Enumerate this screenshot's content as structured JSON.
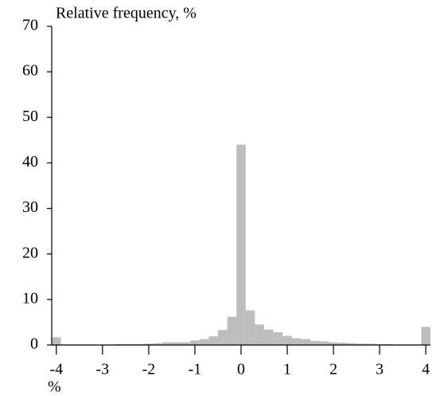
{
  "chart_data": {
    "type": "histogram",
    "y_axis_label": "Relative frequency, %",
    "x_axis_label": "%",
    "bins": [
      -4.1,
      -3.9,
      -3.7,
      -3.5,
      -3.3,
      -3.1,
      -2.9,
      -2.7,
      -2.5,
      -2.3,
      -2.1,
      -1.9,
      -1.7,
      -1.5,
      -1.3,
      -1.1,
      -0.9,
      -0.7,
      -0.5,
      -0.3,
      -0.1,
      0.1,
      0.3,
      0.5,
      0.7,
      0.9,
      1.1,
      1.3,
      1.5,
      1.7,
      1.9,
      2.1,
      2.3,
      2.5,
      2.7,
      2.9,
      3.1,
      3.3,
      3.5,
      3.7,
      3.9,
      4.1
    ],
    "values": [
      1.7,
      0.1,
      0.1,
      0.1,
      0.1,
      0.1,
      0.1,
      0.2,
      0.2,
      0.2,
      0.3,
      0.4,
      0.6,
      0.6,
      0.6,
      1.0,
      1.3,
      1.9,
      3.3,
      6.2,
      44,
      7.6,
      4.5,
      3.4,
      2.8,
      2.0,
      1.5,
      1.3,
      0.9,
      0.8,
      0.6,
      0.5,
      0.4,
      0.3,
      0.3,
      0.2,
      0.2,
      0.1,
      0.1,
      0.1,
      4.0
    ],
    "color": "#bdbdbd",
    "xlim": [
      -4.1,
      4.1
    ],
    "xticks": [
      -4,
      -3,
      -2,
      -1,
      0,
      1,
      2,
      3,
      4
    ],
    "ylim": [
      0,
      70
    ],
    "yticks": [
      0,
      10,
      20,
      30,
      40,
      50,
      60,
      70
    ]
  }
}
